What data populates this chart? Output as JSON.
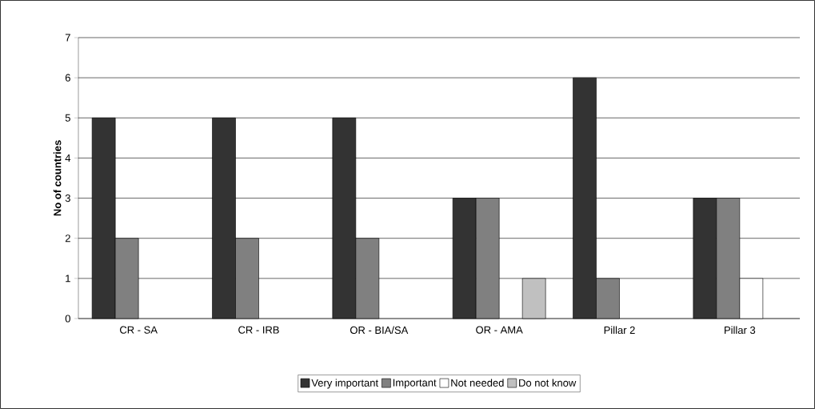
{
  "chart_data": {
    "type": "bar",
    "ylabel": "No of countries",
    "categories": [
      "CR - SA",
      "CR - IRB",
      "OR - BIA/SA",
      "OR - AMA",
      "Pillar 2",
      "Pillar 3"
    ],
    "series": [
      {
        "name": "Very important",
        "color": "#333333",
        "values": [
          5,
          5,
          5,
          3,
          6,
          3
        ]
      },
      {
        "name": "Important",
        "color": "#808080",
        "values": [
          2,
          2,
          2,
          3,
          1,
          3
        ]
      },
      {
        "name": "Not needed",
        "color": "#ffffff",
        "values": [
          null,
          null,
          null,
          null,
          null,
          1
        ]
      },
      {
        "name": "Do not know",
        "color": "#c0c0c0",
        "values": [
          null,
          null,
          null,
          1,
          null,
          null
        ]
      }
    ],
    "ylim": [
      0,
      7
    ],
    "yticks": [
      0,
      1,
      2,
      3,
      4,
      5,
      6,
      7
    ],
    "grid": "y",
    "legend": "bottom"
  }
}
